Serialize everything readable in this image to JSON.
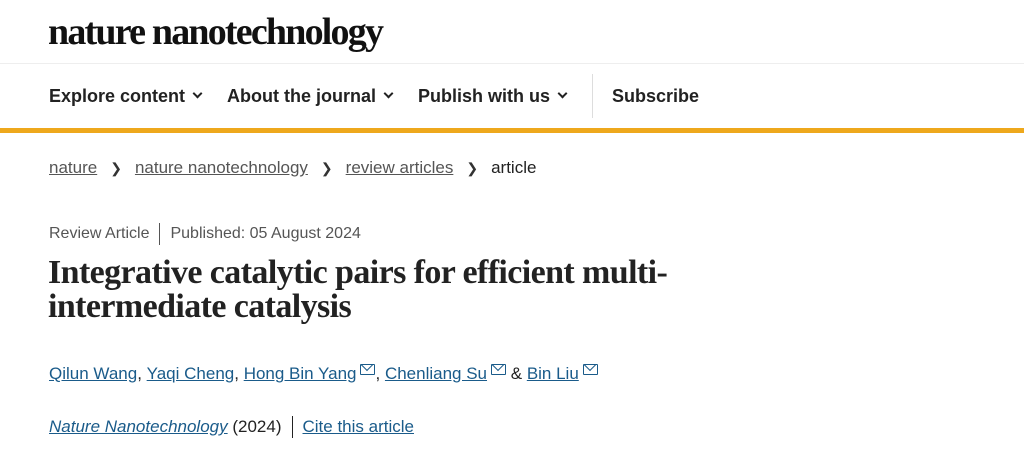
{
  "logo": "nature nanotechnology",
  "nav": {
    "items": [
      "Explore content",
      "About the journal",
      "Publish with us"
    ],
    "subscribe": "Subscribe"
  },
  "colors": {
    "accent": "#eea81c",
    "link": "#1a5b8a"
  },
  "breadcrumb": [
    "nature",
    "nature nanotechnology",
    "review articles",
    "article"
  ],
  "article": {
    "type": "Review Article",
    "published": "Published: 05 August 2024",
    "title": "Integrative catalytic pairs for efficient multi-intermediate catalysis",
    "authors": [
      "Qilun Wang",
      "Yaqi Cheng",
      "Hong Bin Yang",
      "Chenliang Su",
      "Bin Liu"
    ],
    "journal": "Nature Nanotechnology",
    "year": "(2024)",
    "cite": "Cite this article"
  }
}
